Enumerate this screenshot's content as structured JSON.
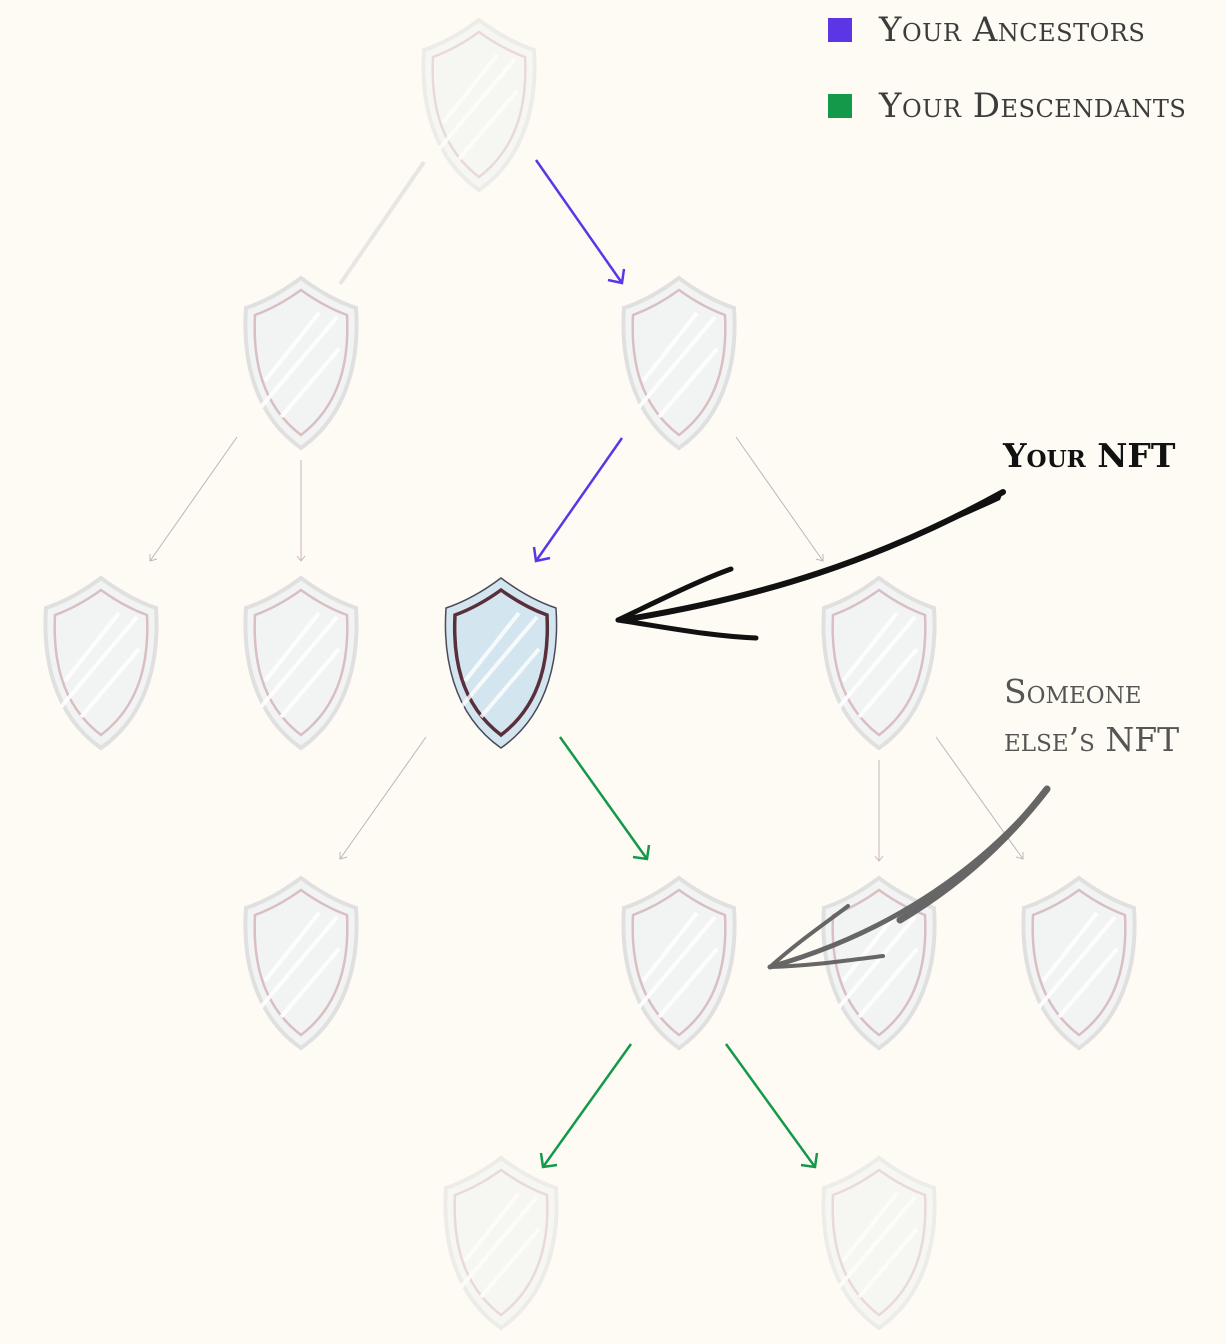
{
  "legend": {
    "ancestors": {
      "label": "Your Ancestors",
      "color": "#5c35e6"
    },
    "descendants": {
      "label": "Your Descendants",
      "color": "#14994a"
    }
  },
  "annotations": {
    "your_nft": "Your NFT",
    "someone_else_line1": "Someone",
    "someone_else_line2": "else’s NFT"
  },
  "colors": {
    "background": "#fdfbf3",
    "shield_fill": "#f2f4f3",
    "shield_highlight_fill": "#d3e6ef",
    "edge_default": "#b8b8b8"
  },
  "icons": {
    "node": "shield-icon"
  }
}
